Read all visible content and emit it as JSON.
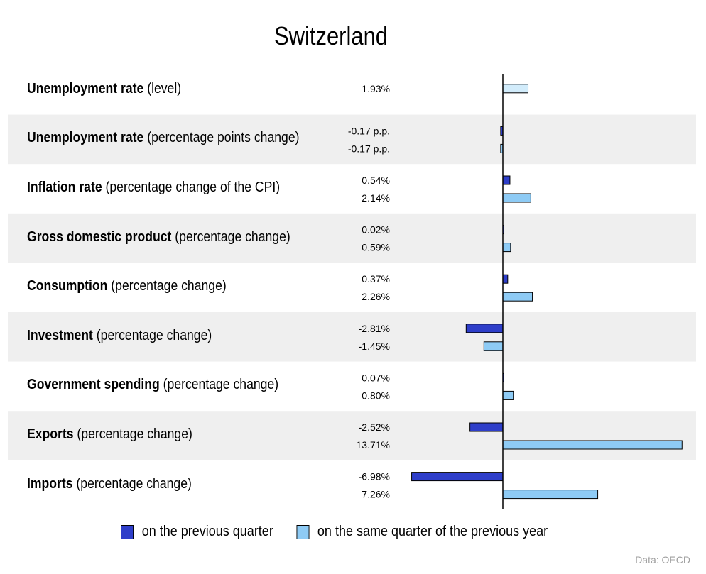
{
  "title": "Switzerland",
  "source": "Data: OECD",
  "colors": {
    "quarter": "#2e3ec9",
    "year": "#8ecbf5",
    "year_light": "#d2ecfb",
    "band": "#efefef",
    "axis": "#000000"
  },
  "legend": {
    "quarter": "on the previous quarter",
    "year": "on the same quarter of the previous year"
  },
  "rows": [
    {
      "bold": "Unemployment rate",
      "rest": " (level)"
    },
    {
      "bold": "Unemployment rate",
      "rest": " (percentage points change)"
    },
    {
      "bold": "Inflation rate",
      "rest": " (percentage change of the CPI)"
    },
    {
      "bold": "Gross domestic product",
      "rest": " (percentage change)"
    },
    {
      "bold": "Consumption",
      "rest": " (percentage change)"
    },
    {
      "bold": "Investment",
      "rest": " (percentage change)"
    },
    {
      "bold": "Government spending",
      "rest": " (percentage change)"
    },
    {
      "bold": "Exports",
      "rest": " (percentage change)"
    },
    {
      "bold": "Imports",
      "rest": " (percentage change)"
    }
  ],
  "chart_data": {
    "type": "bar",
    "orientation": "horizontal",
    "title": "Switzerland",
    "categories": [
      "Unemployment rate (level)",
      "Unemployment rate (percentage points change)",
      "Inflation rate (percentage change of the CPI)",
      "Gross domestic product (percentage change)",
      "Consumption (percentage change)",
      "Investment (percentage change)",
      "Government spending (percentage change)",
      "Exports (percentage change)",
      "Imports (percentage change)"
    ],
    "series": [
      {
        "name": "on the previous quarter",
        "values": [
          null,
          -0.17,
          0.54,
          0.02,
          0.37,
          -2.81,
          0.07,
          -2.52,
          -6.98
        ],
        "labels": [
          null,
          "-0.17 p.p.",
          "0.54%",
          "0.02%",
          "0.37%",
          "-2.81%",
          "0.07%",
          "-2.52%",
          "-6.98%"
        ]
      },
      {
        "name": "on the same quarter of the previous year",
        "values": [
          1.93,
          -0.17,
          2.14,
          0.59,
          2.26,
          -1.45,
          0.8,
          13.71,
          7.26
        ],
        "labels": [
          "1.93%",
          "-0.17 p.p.",
          "2.14%",
          "0.59%",
          "2.26%",
          "-1.45%",
          "0.80%",
          "13.71%",
          "7.26%"
        ]
      }
    ],
    "grid": false,
    "legend_position": "bottom"
  }
}
